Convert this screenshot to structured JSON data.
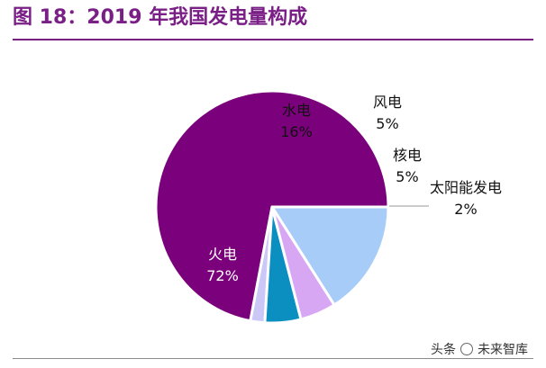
{
  "title": "图 18：2019 年我国发电量构成",
  "watermark": {
    "label": "头条",
    "name": "未来智库"
  },
  "chart_data": {
    "type": "pie",
    "title": "2019 年我国发电量构成",
    "units": "%",
    "start_angle_deg": 0,
    "direction": "counterclockwise",
    "slices": [
      {
        "name": "火电",
        "value": 72,
        "label": "72%",
        "color": "#7b007b"
      },
      {
        "name": "太阳能发电",
        "value": 2,
        "label": "2%",
        "color": "#cbc8f7"
      },
      {
        "name": "核电",
        "value": 5,
        "label": "5%",
        "color": "#0b8fc1"
      },
      {
        "name": "风电",
        "value": 5,
        "label": "5%",
        "color": "#d7a7f4"
      },
      {
        "name": "水电",
        "value": 16,
        "label": "16%",
        "color": "#a7ccf7"
      }
    ]
  }
}
